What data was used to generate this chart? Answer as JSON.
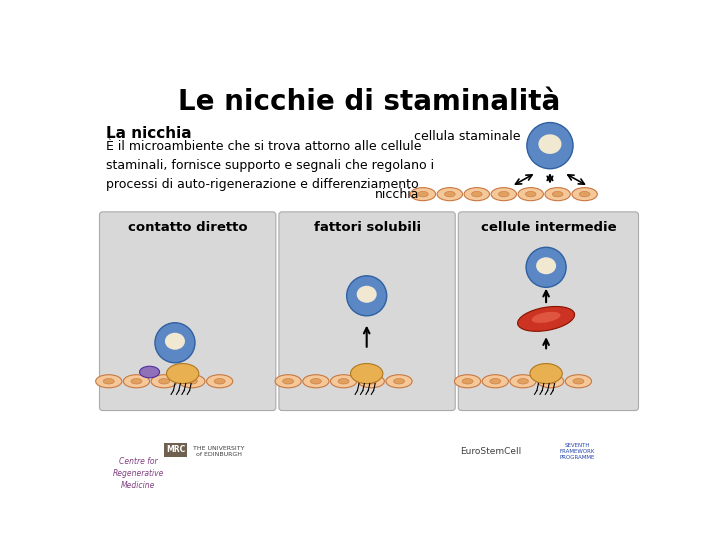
{
  "title": "Le nicchie di staminalità",
  "title_fontsize": 20,
  "background_color": "#ffffff",
  "section1_bold": "La nicchia",
  "section1_text": "È il microambiente che si trova attorno alle cellule\nstaminali, fornisce supporto e segnali che regolano i\nprocesi di auto-rigenerazione e differenziamento",
  "cellula_label": "cellula staminale",
  "nicchia_label": "nicchia",
  "box1_label": "contatto diretto",
  "box2_label": "fattori solubili",
  "box3_label": "cellule intermedie",
  "stem_cell_outer": "#5b87c5",
  "stem_cell_inner": "#f0e8d0",
  "niche_cell_fill": "#f5c89a",
  "niche_cell_edge": "#c87840",
  "box_bg": "#d8d8d8",
  "purple_cell": "#9070b8",
  "red_cell": "#cc3322",
  "stromal_cell_fill": "#e8b050",
  "stromal_cell_edge": "#b07820"
}
